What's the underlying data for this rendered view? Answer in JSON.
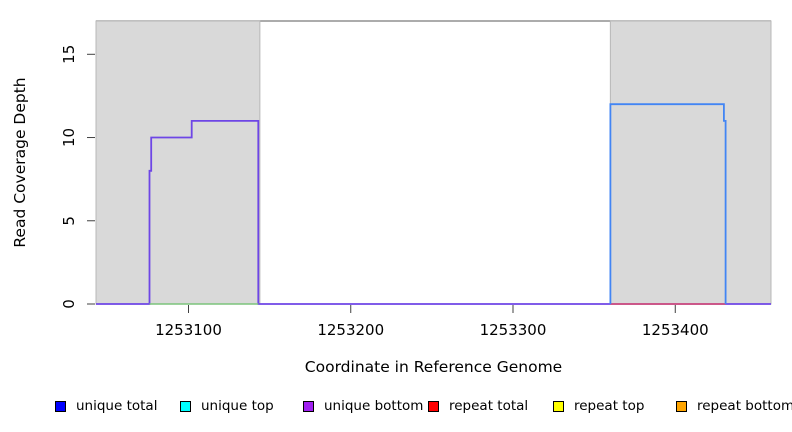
{
  "chart_data": {
    "type": "line",
    "title": "",
    "xlabel": "Coordinate in Reference Genome",
    "ylabel": "Read Coverage Depth",
    "xlim": [
      1253043,
      1253459
    ],
    "ylim": [
      0,
      17
    ],
    "x_ticks": [
      1253100,
      1253200,
      1253300,
      1253400
    ],
    "y_ticks": [
      0,
      5,
      10,
      15
    ],
    "grid": false,
    "legend_position": "bottom",
    "shaded_regions": [
      {
        "name": "left-flank-region",
        "x0": 1253043,
        "x1": 1253144,
        "fill": "#d9d9d9",
        "border": "#b8b8b8"
      },
      {
        "name": "right-flank-region",
        "x0": 1253360,
        "x1": 1253459,
        "fill": "#d9d9d9",
        "border": "#b8b8b8"
      }
    ],
    "top_line": {
      "y": 17,
      "color": "#909090"
    },
    "series": [
      {
        "name": "unique-bottom-total-left-block",
        "color": "#6e46e6",
        "width": 1.8,
        "points": [
          [
            1253043,
            0
          ],
          [
            1253076,
            0
          ],
          [
            1253076,
            8
          ],
          [
            1253077,
            8
          ],
          [
            1253077,
            10
          ],
          [
            1253102,
            10
          ],
          [
            1253102,
            11
          ],
          [
            1253143,
            11
          ],
          [
            1253143,
            0
          ],
          [
            1253459,
            0
          ]
        ]
      },
      {
        "name": "zero-depth-left-block",
        "color": "#7cc47c",
        "width": 1.6,
        "points": [
          [
            1253076,
            0
          ],
          [
            1253143,
            0
          ]
        ]
      },
      {
        "name": "zero-depth-right-block",
        "color": "#e0506a",
        "width": 1.6,
        "points": [
          [
            1253360,
            0
          ],
          [
            1253431,
            0
          ]
        ]
      },
      {
        "name": "unique-total-right-block",
        "color": "#4285f4",
        "width": 1.8,
        "points": [
          [
            1253360,
            0
          ],
          [
            1253360,
            12
          ],
          [
            1253430,
            12
          ],
          [
            1253430,
            11
          ],
          [
            1253431,
            11
          ],
          [
            1253431,
            0
          ]
        ]
      }
    ]
  },
  "legend": {
    "items": [
      {
        "label": "unique total",
        "color": "#0000ff"
      },
      {
        "label": "unique top",
        "color": "#00ffff"
      },
      {
        "label": "unique bottom",
        "color": "#a020f0"
      },
      {
        "label": "repeat total",
        "color": "#ff0000"
      },
      {
        "label": "repeat top",
        "color": "#ffff00"
      },
      {
        "label": "repeat bottom",
        "color": "#ffa500"
      }
    ]
  }
}
